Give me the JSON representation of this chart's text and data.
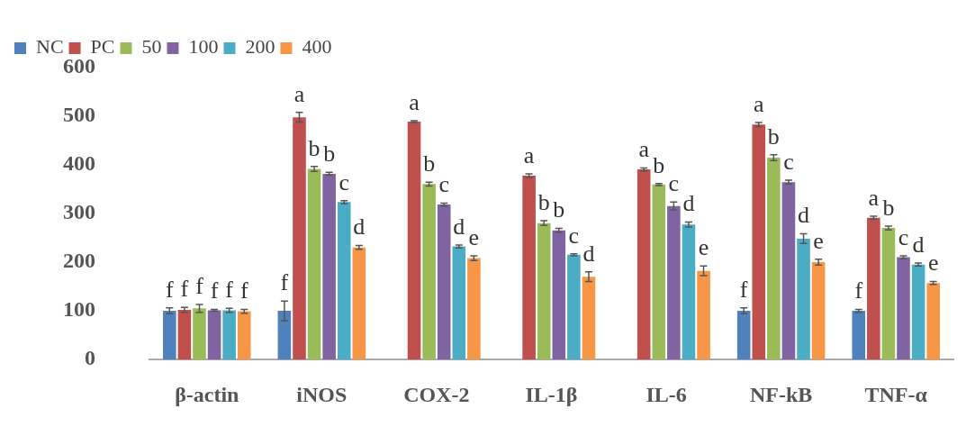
{
  "chart_data": {
    "type": "bar",
    "categories": [
      "β-actin",
      "iNOS",
      "COX-2",
      "IL-1β",
      "IL-6",
      "NF-kB",
      "TNF-α"
    ],
    "series": [
      {
        "name": "NC",
        "color": "#4f81bd",
        "values": [
          100,
          100,
          null,
          null,
          null,
          100,
          100
        ],
        "errors": [
          6,
          20,
          null,
          null,
          null,
          6,
          3
        ],
        "value_labels": [
          "f",
          "f",
          null,
          null,
          null,
          "f",
          "f"
        ]
      },
      {
        "name": "PC",
        "color": "#c0504d",
        "values": [
          102,
          497,
          488,
          377,
          390,
          482,
          291
        ],
        "errors": [
          5,
          10,
          2,
          4,
          3,
          4,
          3
        ],
        "value_labels": [
          "f",
          "a",
          "a",
          "a",
          "a",
          "a",
          "a"
        ]
      },
      {
        "name": "50",
        "color": "#9bbb59",
        "values": [
          105,
          391,
          360,
          280,
          359,
          414,
          270
        ],
        "errors": [
          8,
          5,
          4,
          5,
          2,
          6,
          4
        ],
        "value_labels": [
          "f",
          "b",
          "b",
          "b",
          "b",
          "b",
          "b"
        ]
      },
      {
        "name": "100",
        "color": "#8064a2",
        "values": [
          101,
          381,
          318,
          265,
          315,
          364,
          210
        ],
        "errors": [
          2,
          3,
          3,
          4,
          8,
          4,
          3
        ],
        "value_labels": [
          "f",
          "b",
          "c",
          "b",
          "c",
          "c",
          "c"
        ]
      },
      {
        "name": "200",
        "color": "#4bacc6",
        "values": [
          101,
          323,
          232,
          215,
          277,
          248,
          195
        ],
        "errors": [
          4,
          3,
          3,
          2,
          5,
          10,
          3
        ],
        "value_labels": [
          "f",
          "c",
          "d",
          "c",
          "d",
          "d",
          "d"
        ]
      },
      {
        "name": "400",
        "color": "#f79646",
        "values": [
          99,
          230,
          208,
          170,
          182,
          200,
          157
        ],
        "errors": [
          4,
          4,
          5,
          10,
          10,
          6,
          3
        ],
        "value_labels": [
          "f",
          "d",
          "e",
          "d",
          "e",
          "e",
          "e"
        ]
      }
    ],
    "ylim": [
      0,
      600
    ],
    "yticks": [
      0,
      100,
      200,
      300,
      400,
      500,
      600
    ],
    "grid": false,
    "legend": "top"
  }
}
